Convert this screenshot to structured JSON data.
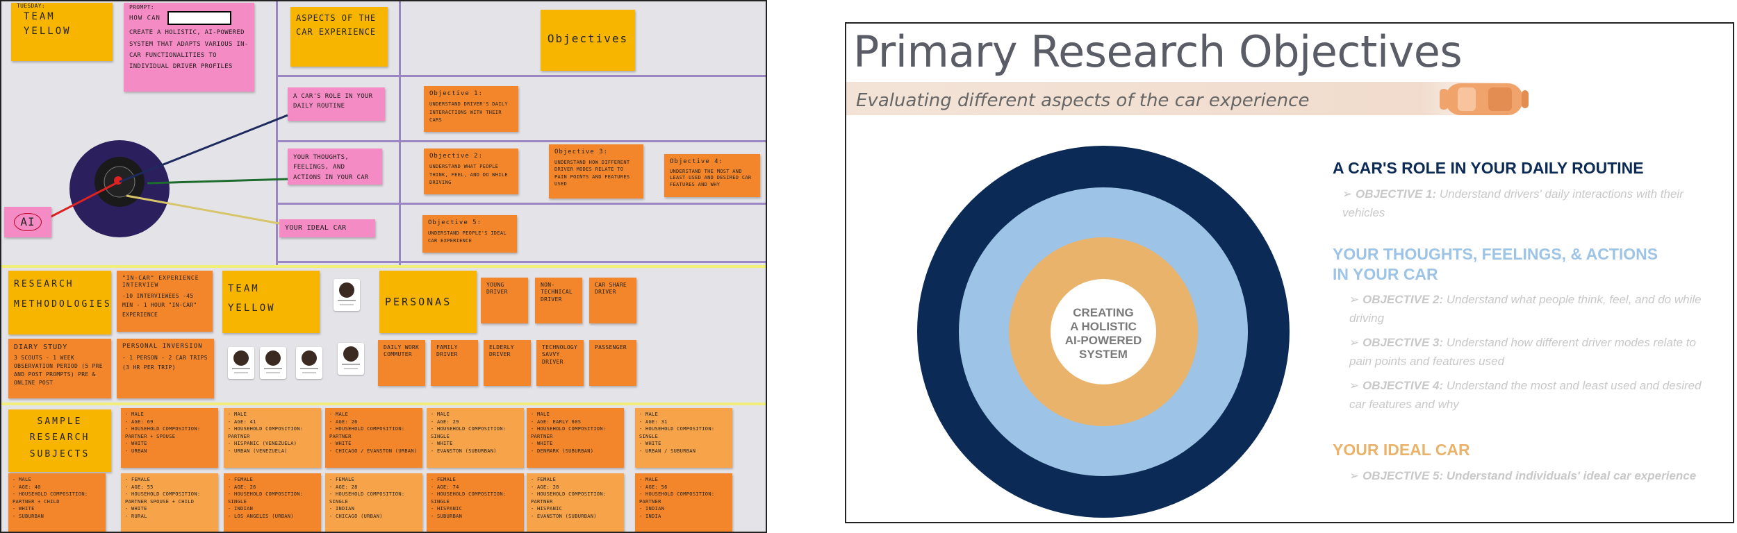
{
  "wall": {
    "day": "TUESDAY:",
    "team_title": "TEAM YELLOW",
    "prompt_label": "PROMPT:",
    "prompt_how": "HOW CAN",
    "prompt_text": "CREATE A HOLISTIC, AI-POWERED SYSTEM THAT ADAPTS VARIOUS IN-CAR FUNCTIONALITIES TO INDIVIDUAL DRIVER PROFILES",
    "aspects_title": "ASPECTS OF THE CAR EXPERIENCE",
    "objectives_title": "Objectives",
    "aspect_role": "A CAR'S ROLE IN YOUR DAILY ROUTINE",
    "aspect_thoughts": "YOUR THOUGHTS, FEELINGS, AND ACTIONS IN YOUR CAR",
    "aspect_ideal": "YOUR IDEAL CAR",
    "ai_label": "AI",
    "obj1_title": "Objective 1:",
    "obj1_text": "UNDERSTAND DRIVER'S DAILY INTERACTIONS WITH THEIR CARS",
    "obj2_title": "Objective 2:",
    "obj2_text": "UNDERSTAND WHAT PEOPLE THINK, FEEL, AND DO WHILE DRIVING",
    "obj3_title": "Objective 3:",
    "obj3_text": "UNDERSTAND HOW DIFFERENT DRIVER MODES RELATE TO PAIN POINTS AND FEATURES USED",
    "obj4_title": "Objective 4:",
    "obj4_text": "UNDERSTAND THE MOST AND LEAST USED AND DESIRED CAR FEATURES AND WHY",
    "obj5_title": "Objective 5:",
    "obj5_text": "UNDERSTAND PEOPLE'S IDEAL CAR EXPERIENCE",
    "methods_title": "RESEARCH METHODOLOGIES",
    "incar_title": "\"IN-CAR\" EXPERIENCE INTERVIEW",
    "incar_text": "-10 INTERVIEWEES -45 MIN - 1 HOUR \"IN-CAR\" EXPERIENCE",
    "diary_title": "DIARY STUDY",
    "diary_text": "3 SCOUTS - 1 WEEK OBSERVATION PERIOD (5 PRE AND POST PROMPTS) PRE & ONLINE POST",
    "personal_title": "PERSONAL INVERSION",
    "personal_text": "- 1 PERSON - 2 CAR TRIPS (3 HR PER TRIP)",
    "team2_title": "TEAM YELLOW",
    "personas_title": "PERSONAS",
    "persona_young": "YOUNG DRIVER",
    "persona_nontech": "NON-TECHNICAL DRIVER",
    "persona_carshare": "CAR SHARE DRIVER",
    "persona_commuter": "DAILY WORK COMMUTER",
    "persona_family": "FAMILY DRIVER",
    "persona_elderly": "ELDERLY DRIVER",
    "persona_techsavvy": "TECHNOLOGY SAVVY DRIVER",
    "persona_passenger": "PASSENGER",
    "sample_title": "SAMPLE RESEARCH SUBJECTS",
    "subjects": [
      {
        "line1": "- MALE",
        "line2": "- AGE: 69",
        "line3": "- HOUSEHOLD COMPOSITION: PARTNER + SPOUSE",
        "line4": "- WHITE",
        "line5": "- URBAN"
      },
      {
        "line1": "- MALE",
        "line2": "- AGE: 41",
        "line3": "- HOUSEHOLD COMPOSITION: PARTNER",
        "line4": "- HISPANIC (VENEZUELA)",
        "line5": "- URBAN (VENEZUELA)"
      },
      {
        "line1": "- MALE",
        "line2": "- AGE: 26",
        "line3": "- HOUSEHOLD COMPOSITION: PARTNER",
        "line4": "- WHITE",
        "line5": "- CHICAGO / EVANSTON (URBAN)"
      },
      {
        "line1": "- MALE",
        "line2": "- AGE: 29",
        "line3": "- HOUSEHOLD COMPOSITION: SINGLE",
        "line4": "- WHITE",
        "line5": "- EVANSTON (SUBURBAN)"
      },
      {
        "line1": "- MALE",
        "line2": "- AGE: EARLY 60S",
        "line3": "- HOUSEHOLD COMPOSITION: PARTNER",
        "line4": "- WHITE",
        "line5": "- DENMARK (SUBURBAN)"
      },
      {
        "line1": "- MALE",
        "line2": "- AGE: 31",
        "line3": "- HOUSEHOLD COMPOSITION: SINGLE",
        "line4": "- WHITE",
        "line5": "- URBAN / SUBURBAN"
      },
      {
        "line1": "- MALE",
        "line2": "- AGE: 40",
        "line3": "- HOUSEHOLD COMPOSITION: PARTNER + CHILD",
        "line4": "- WHITE",
        "line5": "- SUBURBAN"
      },
      {
        "line1": "- FEMALE",
        "line2": "- AGE: 55",
        "line3": "- HOUSEHOLD COMPOSITION: PARTNER SPOUSE + CHILD",
        "line4": "- WHITE",
        "line5": "- RURAL"
      },
      {
        "line1": "- FEMALE",
        "line2": "- AGE: 26",
        "line3": "- HOUSEHOLD COMPOSITION: SINGLE",
        "line4": "- INDIAN",
        "line5": "- LOS ANGELES (URBAN)"
      },
      {
        "line1": "- FEMALE",
        "line2": "- AGE: 28",
        "line3": "- HOUSEHOLD COMPOSITION: SINGLE",
        "line4": "- INDIAN",
        "line5": "- CHICAGO (URBAN)"
      },
      {
        "line1": "- FEMALE",
        "line2": "- AGE: 74",
        "line3": "- HOUSEHOLD COMPOSITION: SINGLE",
        "line4": "- HISPANIC",
        "line5": "- SUBURBAN"
      },
      {
        "line1": "- FEMALE",
        "line2": "- AGE: 28",
        "line3": "- HOUSEHOLD COMPOSITION: PARTNER",
        "line4": "- HISPANIC",
        "line5": "- EVANSTON (SUBURBAN)"
      },
      {
        "line1": "- MALE",
        "line2": "- AGE: 56",
        "line3": "- HOUSEHOLD COMPOSITION: PARTNER",
        "line4": "- INDIAN",
        "line5": "- INDIA"
      }
    ]
  },
  "slide": {
    "title": "Primary Research Objectives",
    "subtitle": "Evaluating different aspects of the car experience",
    "center_label": [
      "CREATING",
      "A HOLISTIC",
      "AI-POWERED",
      "SYSTEM"
    ],
    "section1_title": "A CAR'S ROLE IN YOUR DAILY ROUTINE",
    "section1_obj_label": "OBJECTIVE 1:",
    "section1_obj_text": "Understand drivers' daily interactions with their vehicles",
    "section2_title_line1": "YOUR THOUGHTS, FEELINGS, & ACTIONS",
    "section2_title_line2": "IN YOUR CAR",
    "section2_obj2_label": "OBJECTIVE 2:",
    "section2_obj2_text": "Understand what people think, feel, and do while driving",
    "section2_obj3_label": "OBJECTIVE 3:",
    "section2_obj3_text": "Understand how different driver modes relate to pain points and features used",
    "section2_obj4_label": "OBJECTIVE 4:",
    "section2_obj4_text": "Understand the most and least used and desired car features and why",
    "section3_title": "YOUR IDEAL CAR",
    "section3_obj_label": "OBJECTIVE 5:",
    "section3_obj_text": "Understand individuals' ideal car experience",
    "colors": {
      "title_gray": "#5a5d66",
      "navy": "#0b2a55",
      "light_blue": "#9dc3e6",
      "orange": "#e9b36b",
      "faded_text": "#c8c8c8",
      "section2_blue": "#9dc3e6",
      "section3_orange": "#e9b36b",
      "car_orange": "#f0a36b"
    }
  }
}
